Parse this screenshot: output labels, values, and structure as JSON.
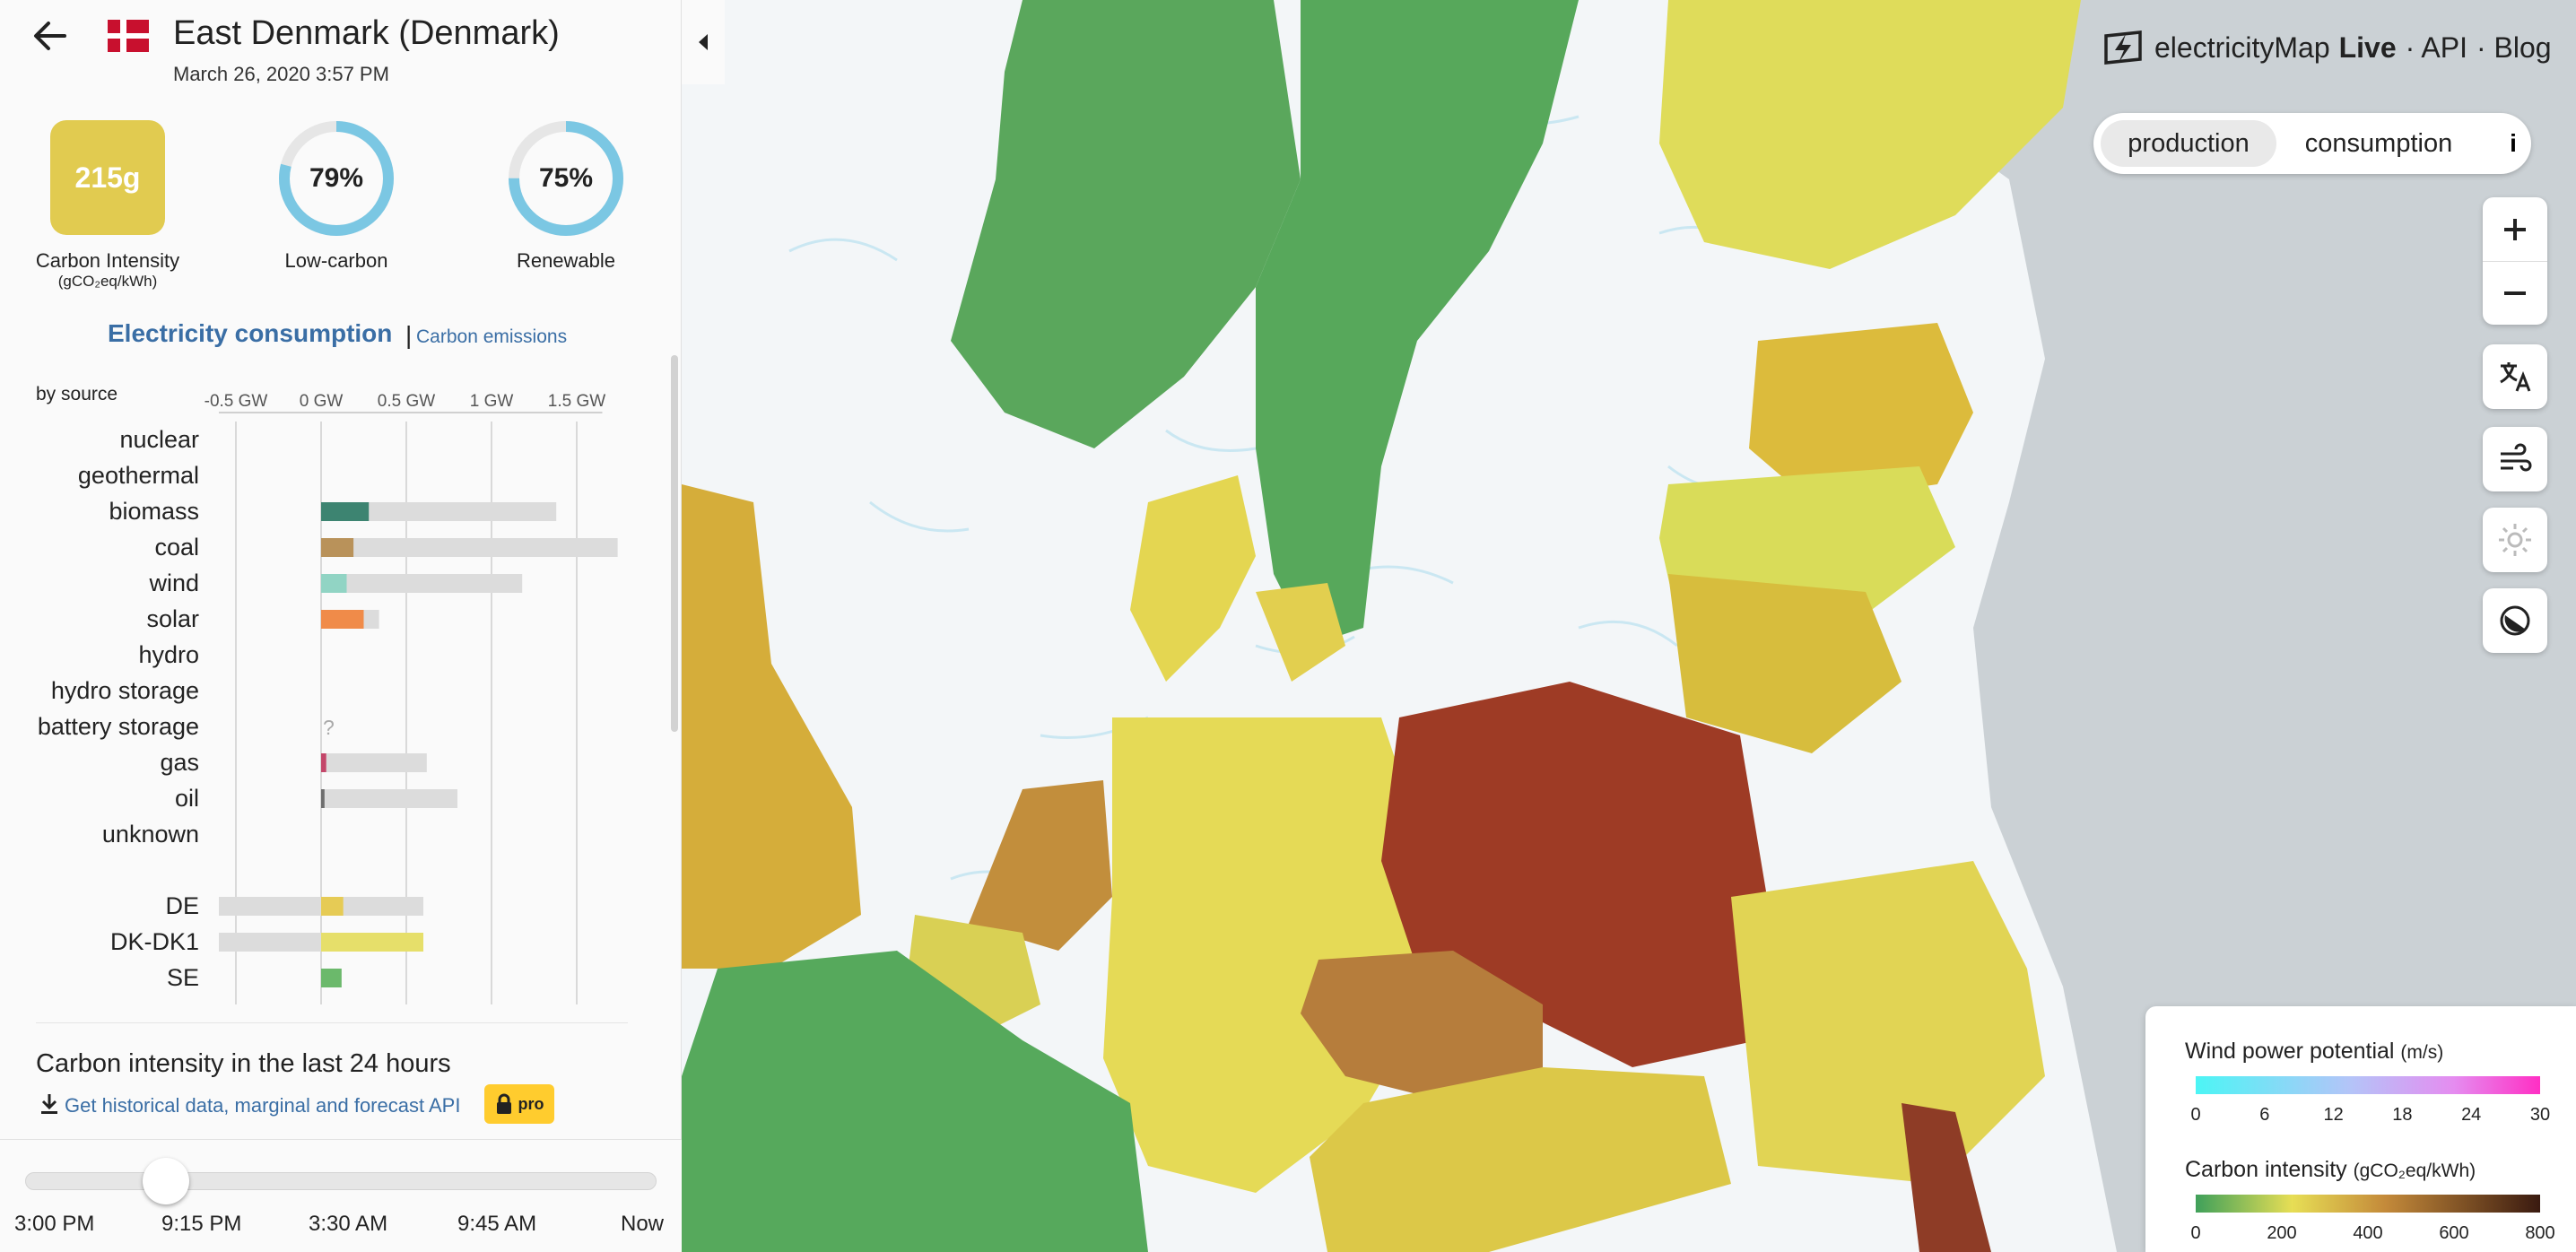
{
  "zone": {
    "name": "East Denmark (Denmark)",
    "datetime": "March 26, 2020 3:57 PM",
    "carbon_intensity": "215g",
    "carbon_intensity_label": "Carbon Intensity",
    "carbon_intensity_unit": "(gCO₂eq/kWh)",
    "low_carbon_value": "79%",
    "low_carbon_fraction": 0.79,
    "low_carbon_label": "Low-carbon",
    "renewable_value": "75%",
    "renewable_fraction": 0.75,
    "renewable_label": "Renewable"
  },
  "breakdown": {
    "mode_active": "Electricity consumption",
    "separator": "|",
    "mode_other": "Carbon emissions",
    "by_source_label": "by source",
    "chart_data": {
      "type": "bar",
      "unit": "GW",
      "axis_ticks": [
        "-0.5 GW",
        "0 GW",
        "0.5 GW",
        "1 GW",
        "1.5 GW"
      ],
      "xlim": [
        -0.6,
        1.75
      ],
      "rows": [
        {
          "label": "nuclear",
          "value": null,
          "capacity": null,
          "color": "#000000"
        },
        {
          "label": "geothermal",
          "value": null,
          "capacity": null,
          "color": "#000000"
        },
        {
          "label": "biomass",
          "value": 0.28,
          "capacity": 1.38,
          "color": "#3d8471"
        },
        {
          "label": "coal",
          "value": 0.19,
          "capacity": 1.74,
          "color": "#b9925a"
        },
        {
          "label": "wind",
          "value": 0.15,
          "capacity": 1.18,
          "color": "#91d4c4"
        },
        {
          "label": "solar",
          "value": 0.25,
          "capacity": 0.34,
          "color": "#f08b49"
        },
        {
          "label": "hydro",
          "value": null,
          "capacity": null,
          "color": "#000000"
        },
        {
          "label": "hydro storage",
          "value": null,
          "capacity": null,
          "color": "#000000"
        },
        {
          "label": "battery storage",
          "value": null,
          "capacity": null,
          "color": "#000000",
          "unknown_mark": "?"
        },
        {
          "label": "gas",
          "value": 0.03,
          "capacity": 0.62,
          "color": "#c4476a"
        },
        {
          "label": "oil",
          "value": 0.02,
          "capacity": 0.8,
          "color": "#6e6e6e"
        },
        {
          "label": "unknown",
          "value": null,
          "capacity": null,
          "color": "#000000"
        }
      ],
      "exchanges": [
        {
          "label": "DE",
          "value": 0.13,
          "capacity_low": -0.6,
          "capacity_high": 0.6,
          "color": "#e6cb55"
        },
        {
          "label": "DK-DK1",
          "value": 0.6,
          "capacity_low": -0.6,
          "capacity_high": 0.6,
          "color": "#e6df6a"
        },
        {
          "label": "SE",
          "value": 0.12,
          "capacity_low": 0,
          "capacity_high": 0.12,
          "color": "#6bb96b"
        }
      ]
    }
  },
  "history": {
    "title": "Carbon intensity in the last 24 hours",
    "link_text": "Get historical data, marginal and forecast API",
    "pro_badge": "pro"
  },
  "timeline": {
    "ticks": [
      "3:00 PM",
      "9:15 PM",
      "3:30 AM",
      "9:45 AM",
      "Now"
    ]
  },
  "header": {
    "brand_name": "electricityMap",
    "brand_live": "Live",
    "nav_api": "· API",
    "nav_blog": "· Blog"
  },
  "toggle": {
    "production": "production",
    "consumption": "consumption",
    "info": "i"
  },
  "legend": {
    "wind_title": "Wind power potential",
    "wind_unit": "(m/s)",
    "wind_ticks": [
      "0",
      "6",
      "12",
      "18",
      "24",
      "30"
    ],
    "carbon_title": "Carbon intensity",
    "carbon_unit": "(gCO₂eq/kWh)",
    "carbon_ticks": [
      "0",
      "200",
      "400",
      "600",
      "800"
    ]
  },
  "colors": {
    "accent_blue": "#3a6ea5",
    "ring_blue": "#7bc7e3",
    "pro_yellow": "#ffcc2e",
    "ci_box": "#e1cb50"
  }
}
